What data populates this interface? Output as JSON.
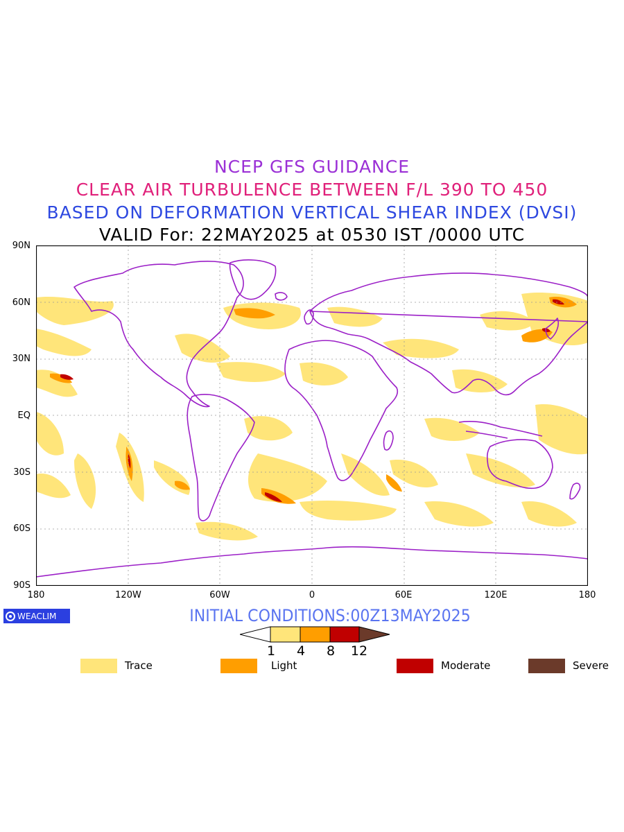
{
  "titles": {
    "line1": "NCEP GFS GUIDANCE",
    "line2": "CLEAR AIR TURBULENCE BETWEEN F/L 390 TO 450",
    "line3": "BASED ON DEFORMATION VERTICAL SHEAR INDEX (DVSI)",
    "line4": "VALID For: 22MAY2025 at 0530 IST /0000 UTC"
  },
  "axes": {
    "lat_labels": [
      "90N",
      "60N",
      "30N",
      "EQ",
      "30S",
      "60S",
      "90S"
    ],
    "lon_labels": [
      "180",
      "120W",
      "60W",
      "0",
      "60E",
      "120E",
      "180"
    ]
  },
  "map": {
    "projection": "cylindrical equidistant",
    "lon_range": [
      -180,
      180
    ],
    "lat_range": [
      -90,
      90
    ],
    "grid": "dotted every 60 degrees longitude and 30 degrees latitude",
    "coastline_color": "#9b1fc7"
  },
  "logo": {
    "text": "WEACLIM"
  },
  "initial_conditions": "INITIAL CONDITIONS:00Z13MAY2025",
  "colorbar": {
    "ticks": [
      "1",
      "4",
      "8",
      "12"
    ],
    "colors": [
      "#ffffff",
      "#ffe57a",
      "#ff9e00",
      "#c00000",
      "#6b3a2a"
    ]
  },
  "legend": [
    {
      "label": "Trace",
      "color": "#ffe57a"
    },
    {
      "label": "Light",
      "color": "#ff9e00"
    },
    {
      "label": "Moderate",
      "color": "#c00000"
    },
    {
      "label": "Severe",
      "color": "#6b3a2a"
    }
  ]
}
